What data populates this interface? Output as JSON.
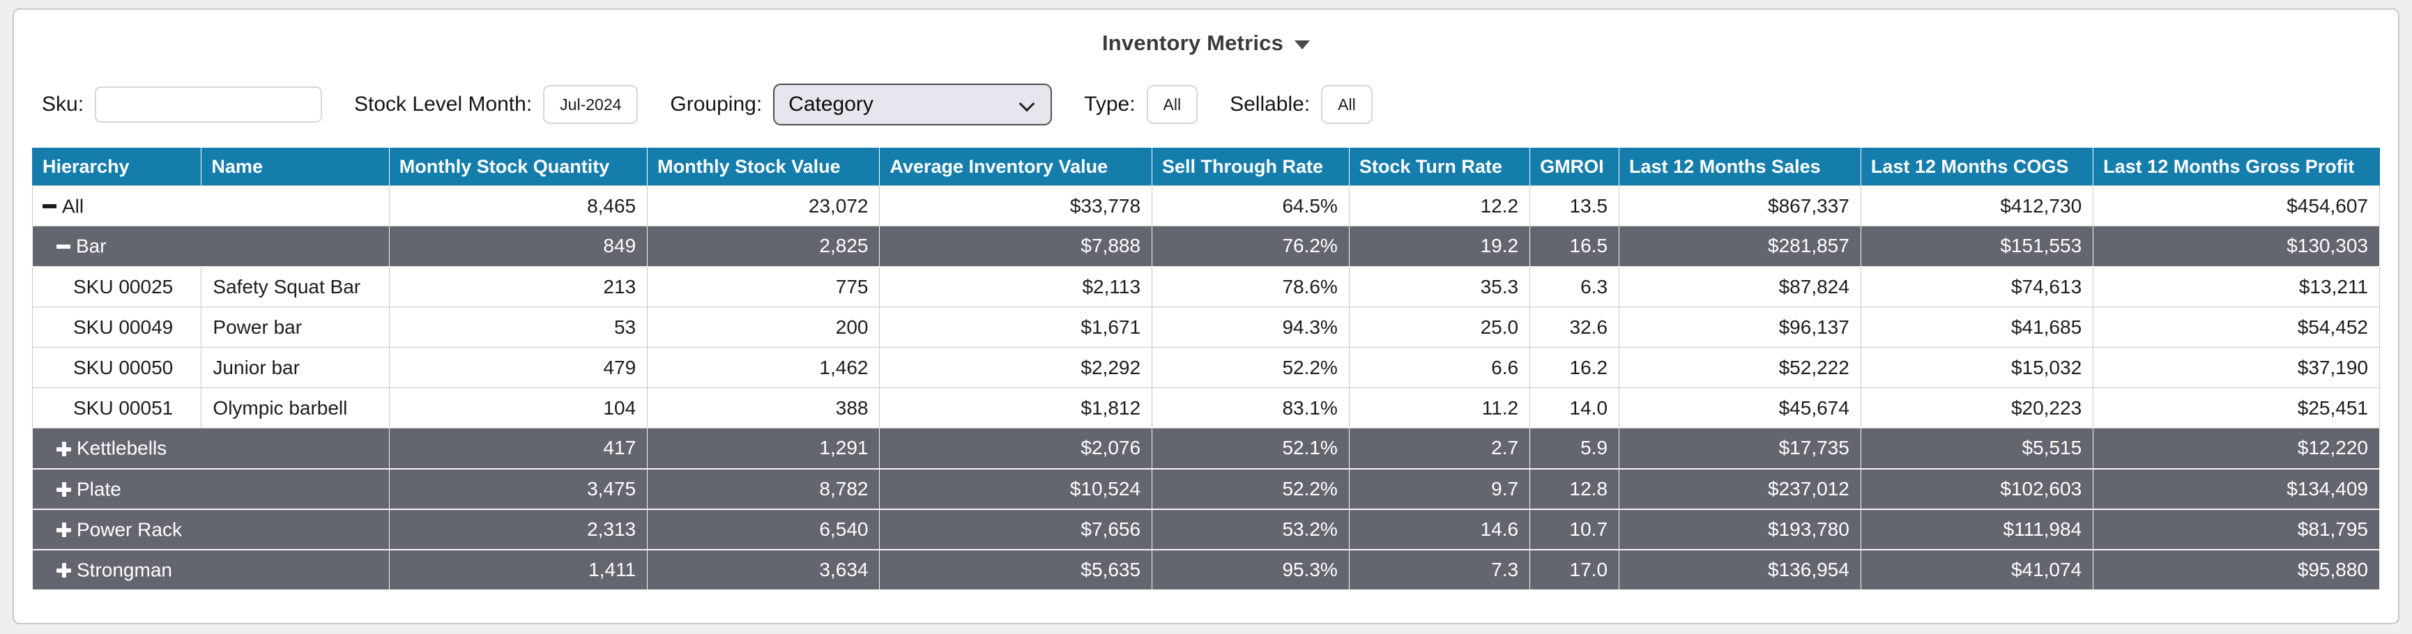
{
  "title": {
    "label": "Inventory Metrics"
  },
  "filters": {
    "sku": {
      "label": "Sku:",
      "value": "",
      "placeholder": ""
    },
    "stock_level_month": {
      "label": "Stock Level Month:",
      "value": "Jul-2024"
    },
    "grouping": {
      "label": "Grouping:",
      "value": "Category"
    },
    "type": {
      "label": "Type:",
      "value": "All"
    },
    "sellable": {
      "label": "Sellable:",
      "value": "All"
    }
  },
  "table": {
    "columns": [
      "Hierarchy",
      "Name",
      "Monthly Stock Quantity",
      "Monthly Stock Value",
      "Average Inventory Value",
      "Sell Through Rate",
      "Stock Turn Rate",
      "GMROI",
      "Last 12 Months Sales",
      "Last 12 Months COGS",
      "Last 12 Months Gross Profit"
    ],
    "column_widths_pct": [
      7.2,
      8.0,
      11.0,
      9.9,
      11.6,
      8.4,
      7.7,
      3.8,
      10.3,
      9.9,
      12.2
    ],
    "rows": [
      {
        "kind": "group",
        "level": 0,
        "icon": "minus",
        "style": "light",
        "hierarchy": "All",
        "name": "",
        "values": [
          "8,465",
          "23,072",
          "$33,778",
          "64.5%",
          "12.2",
          "13.5",
          "$867,337",
          "$412,730",
          "$454,607"
        ]
      },
      {
        "kind": "group",
        "level": 1,
        "icon": "minus",
        "style": "dark",
        "hierarchy": "Bar",
        "name": "",
        "values": [
          "849",
          "2,825",
          "$7,888",
          "76.2%",
          "19.2",
          "16.5",
          "$281,857",
          "$151,553",
          "$130,303"
        ]
      },
      {
        "kind": "sku",
        "style": "light",
        "hierarchy": "SKU 00025",
        "name": "Safety Squat Bar",
        "values": [
          "213",
          "775",
          "$2,113",
          "78.6%",
          "35.3",
          "6.3",
          "$87,824",
          "$74,613",
          "$13,211"
        ]
      },
      {
        "kind": "sku",
        "style": "light",
        "hierarchy": "SKU 00049",
        "name": "Power bar",
        "values": [
          "53",
          "200",
          "$1,671",
          "94.3%",
          "25.0",
          "32.6",
          "$96,137",
          "$41,685",
          "$54,452"
        ]
      },
      {
        "kind": "sku",
        "style": "light",
        "hierarchy": "SKU 00050",
        "name": "Junior bar",
        "values": [
          "479",
          "1,462",
          "$2,292",
          "52.2%",
          "6.6",
          "16.2",
          "$52,222",
          "$15,032",
          "$37,190"
        ]
      },
      {
        "kind": "sku",
        "style": "light",
        "hierarchy": "SKU 00051",
        "name": "Olympic barbell",
        "values": [
          "104",
          "388",
          "$1,812",
          "83.1%",
          "11.2",
          "14.0",
          "$45,674",
          "$20,223",
          "$25,451"
        ]
      },
      {
        "kind": "group",
        "level": 1,
        "icon": "plus",
        "style": "dark",
        "hierarchy": "Kettlebells",
        "name": "",
        "values": [
          "417",
          "1,291",
          "$2,076",
          "52.1%",
          "2.7",
          "5.9",
          "$17,735",
          "$5,515",
          "$12,220"
        ]
      },
      {
        "kind": "group",
        "level": 1,
        "icon": "plus",
        "style": "dark",
        "hierarchy": "Plate",
        "name": "",
        "values": [
          "3,475",
          "8,782",
          "$10,524",
          "52.2%",
          "9.7",
          "12.8",
          "$237,012",
          "$102,603",
          "$134,409"
        ]
      },
      {
        "kind": "group",
        "level": 1,
        "icon": "plus",
        "style": "dark",
        "hierarchy": "Power Rack",
        "name": "",
        "values": [
          "2,313",
          "6,540",
          "$7,656",
          "53.2%",
          "14.6",
          "10.7",
          "$193,780",
          "$111,984",
          "$81,795"
        ]
      },
      {
        "kind": "group",
        "level": 1,
        "icon": "plus",
        "style": "dark",
        "hierarchy": "Strongman",
        "name": "",
        "values": [
          "1,411",
          "3,634",
          "$5,635",
          "95.3%",
          "7.3",
          "17.0",
          "$136,954",
          "$41,074",
          "$95,880"
        ]
      }
    ]
  },
  "colors": {
    "header_bg": "#147dac",
    "group_row_bg": "#63666e",
    "panel_border": "#c9c9c9",
    "page_bg": "#efeff0"
  }
}
